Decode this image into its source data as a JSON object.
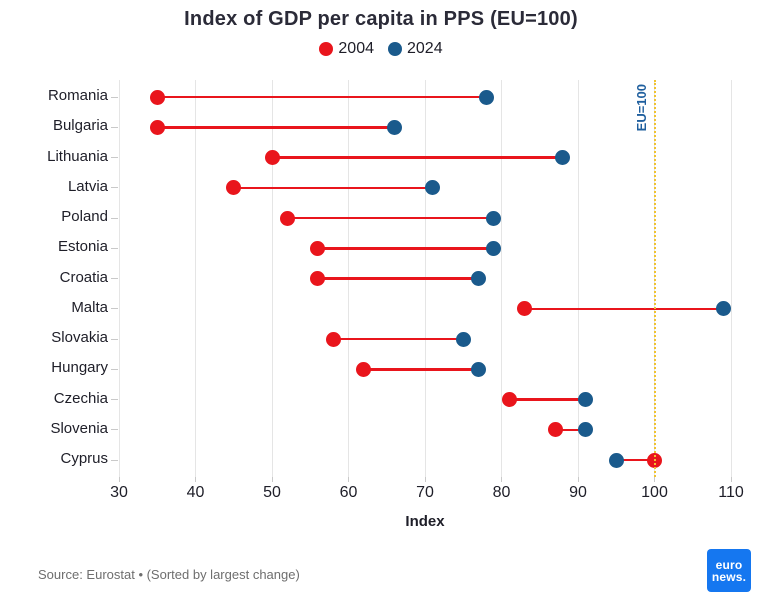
{
  "chart_data": {
    "type": "dumbbell",
    "title": "Index of GDP per capita in PPS (EU=100)",
    "xlabel": "Index",
    "categories": [
      "Romania",
      "Bulgaria",
      "Lithuania",
      "Latvia",
      "Poland",
      "Estonia",
      "Croatia",
      "Malta",
      "Slovakia",
      "Hungary",
      "Czechia",
      "Slovenia",
      "Cyprus"
    ],
    "series": [
      {
        "name": "2004",
        "color": "#e9151c",
        "values": [
          35,
          35,
          50,
          45,
          52,
          56,
          56,
          83,
          58,
          62,
          81,
          87,
          100
        ]
      },
      {
        "name": "2024",
        "color": "#1a5a8c",
        "values": [
          78,
          66,
          88,
          71,
          79,
          79,
          77,
          109,
          75,
          77,
          91,
          91,
          95
        ]
      }
    ],
    "connector_color": "#e9151c",
    "xticks": [
      30,
      40,
      50,
      60,
      70,
      80,
      90,
      100,
      110
    ],
    "xlim": [
      30,
      110
    ],
    "grid": "vertical-only",
    "grid_color": "#e5e5e5",
    "tick_color": "#c9c9c9",
    "text_color": "#1e1e28",
    "legend_position": "top-center",
    "reference_line": {
      "value": 100,
      "label": "EU=100",
      "color": "#f0c331",
      "label_color": "#1f5f9e"
    }
  },
  "footer": {
    "source": "Source: Eurostat • (Sorted by largest change)",
    "logo_line1": "euro",
    "logo_line2": "news.",
    "logo_bg": "#1577f0"
  }
}
